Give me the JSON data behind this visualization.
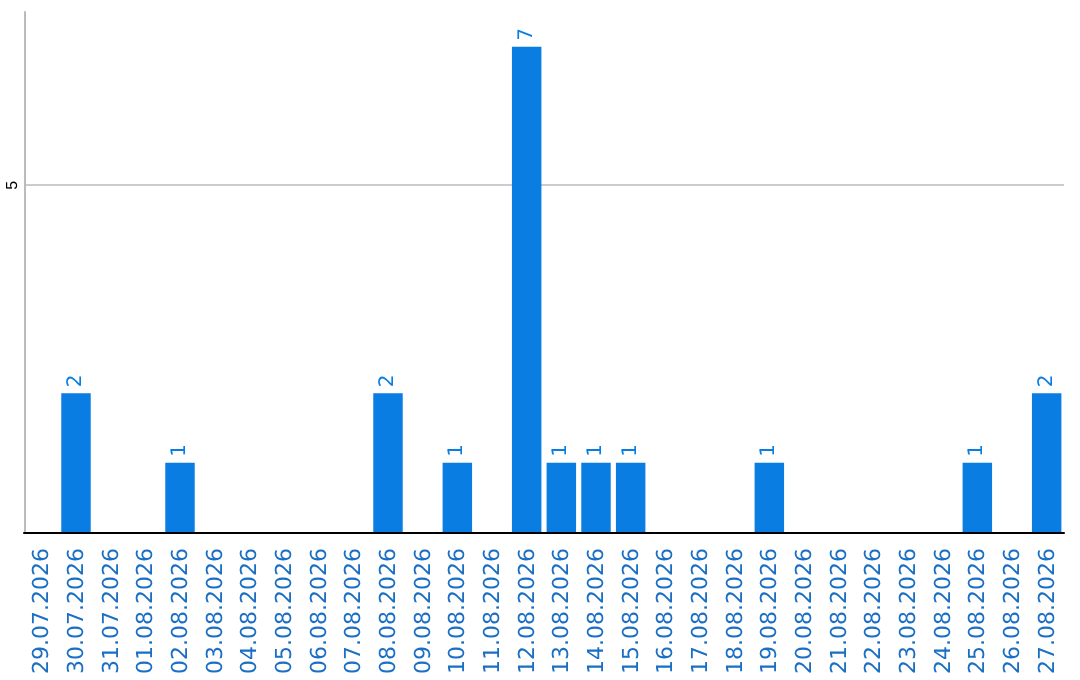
{
  "chart_data": {
    "type": "bar",
    "categories": [
      "29.07.2026",
      "30.07.2026",
      "31.07.2026",
      "01.08.2026",
      "02.08.2026",
      "03.08.2026",
      "04.08.2026",
      "05.08.2026",
      "06.08.2026",
      "07.08.2026",
      "08.08.2026",
      "09.08.2026",
      "10.08.2026",
      "11.08.2026",
      "12.08.2026",
      "13.08.2026",
      "14.08.2026",
      "15.08.2026",
      "16.08.2026",
      "17.08.2026",
      "18.08.2026",
      "19.08.2026",
      "20.08.2026",
      "21.08.2026",
      "22.08.2026",
      "23.08.2026",
      "24.08.2026",
      "25.08.2026",
      "26.08.2026",
      "27.08.2026"
    ],
    "values": [
      0,
      2,
      0,
      0,
      1,
      0,
      0,
      0,
      0,
      0,
      2,
      0,
      1,
      0,
      7,
      1,
      1,
      1,
      0,
      0,
      0,
      1,
      0,
      0,
      0,
      0,
      0,
      1,
      0,
      2
    ],
    "value_labels": [
      null,
      "2",
      null,
      null,
      "1",
      null,
      null,
      null,
      null,
      null,
      "2",
      null,
      "1",
      null,
      "7",
      "1",
      "1",
      "1",
      null,
      null,
      null,
      "1",
      null,
      null,
      null,
      null,
      null,
      "1",
      null,
      "2"
    ],
    "color": "#0a7de3",
    "ylim": [
      0,
      7.5
    ],
    "yticks": [
      5
    ],
    "grid": "y"
  }
}
